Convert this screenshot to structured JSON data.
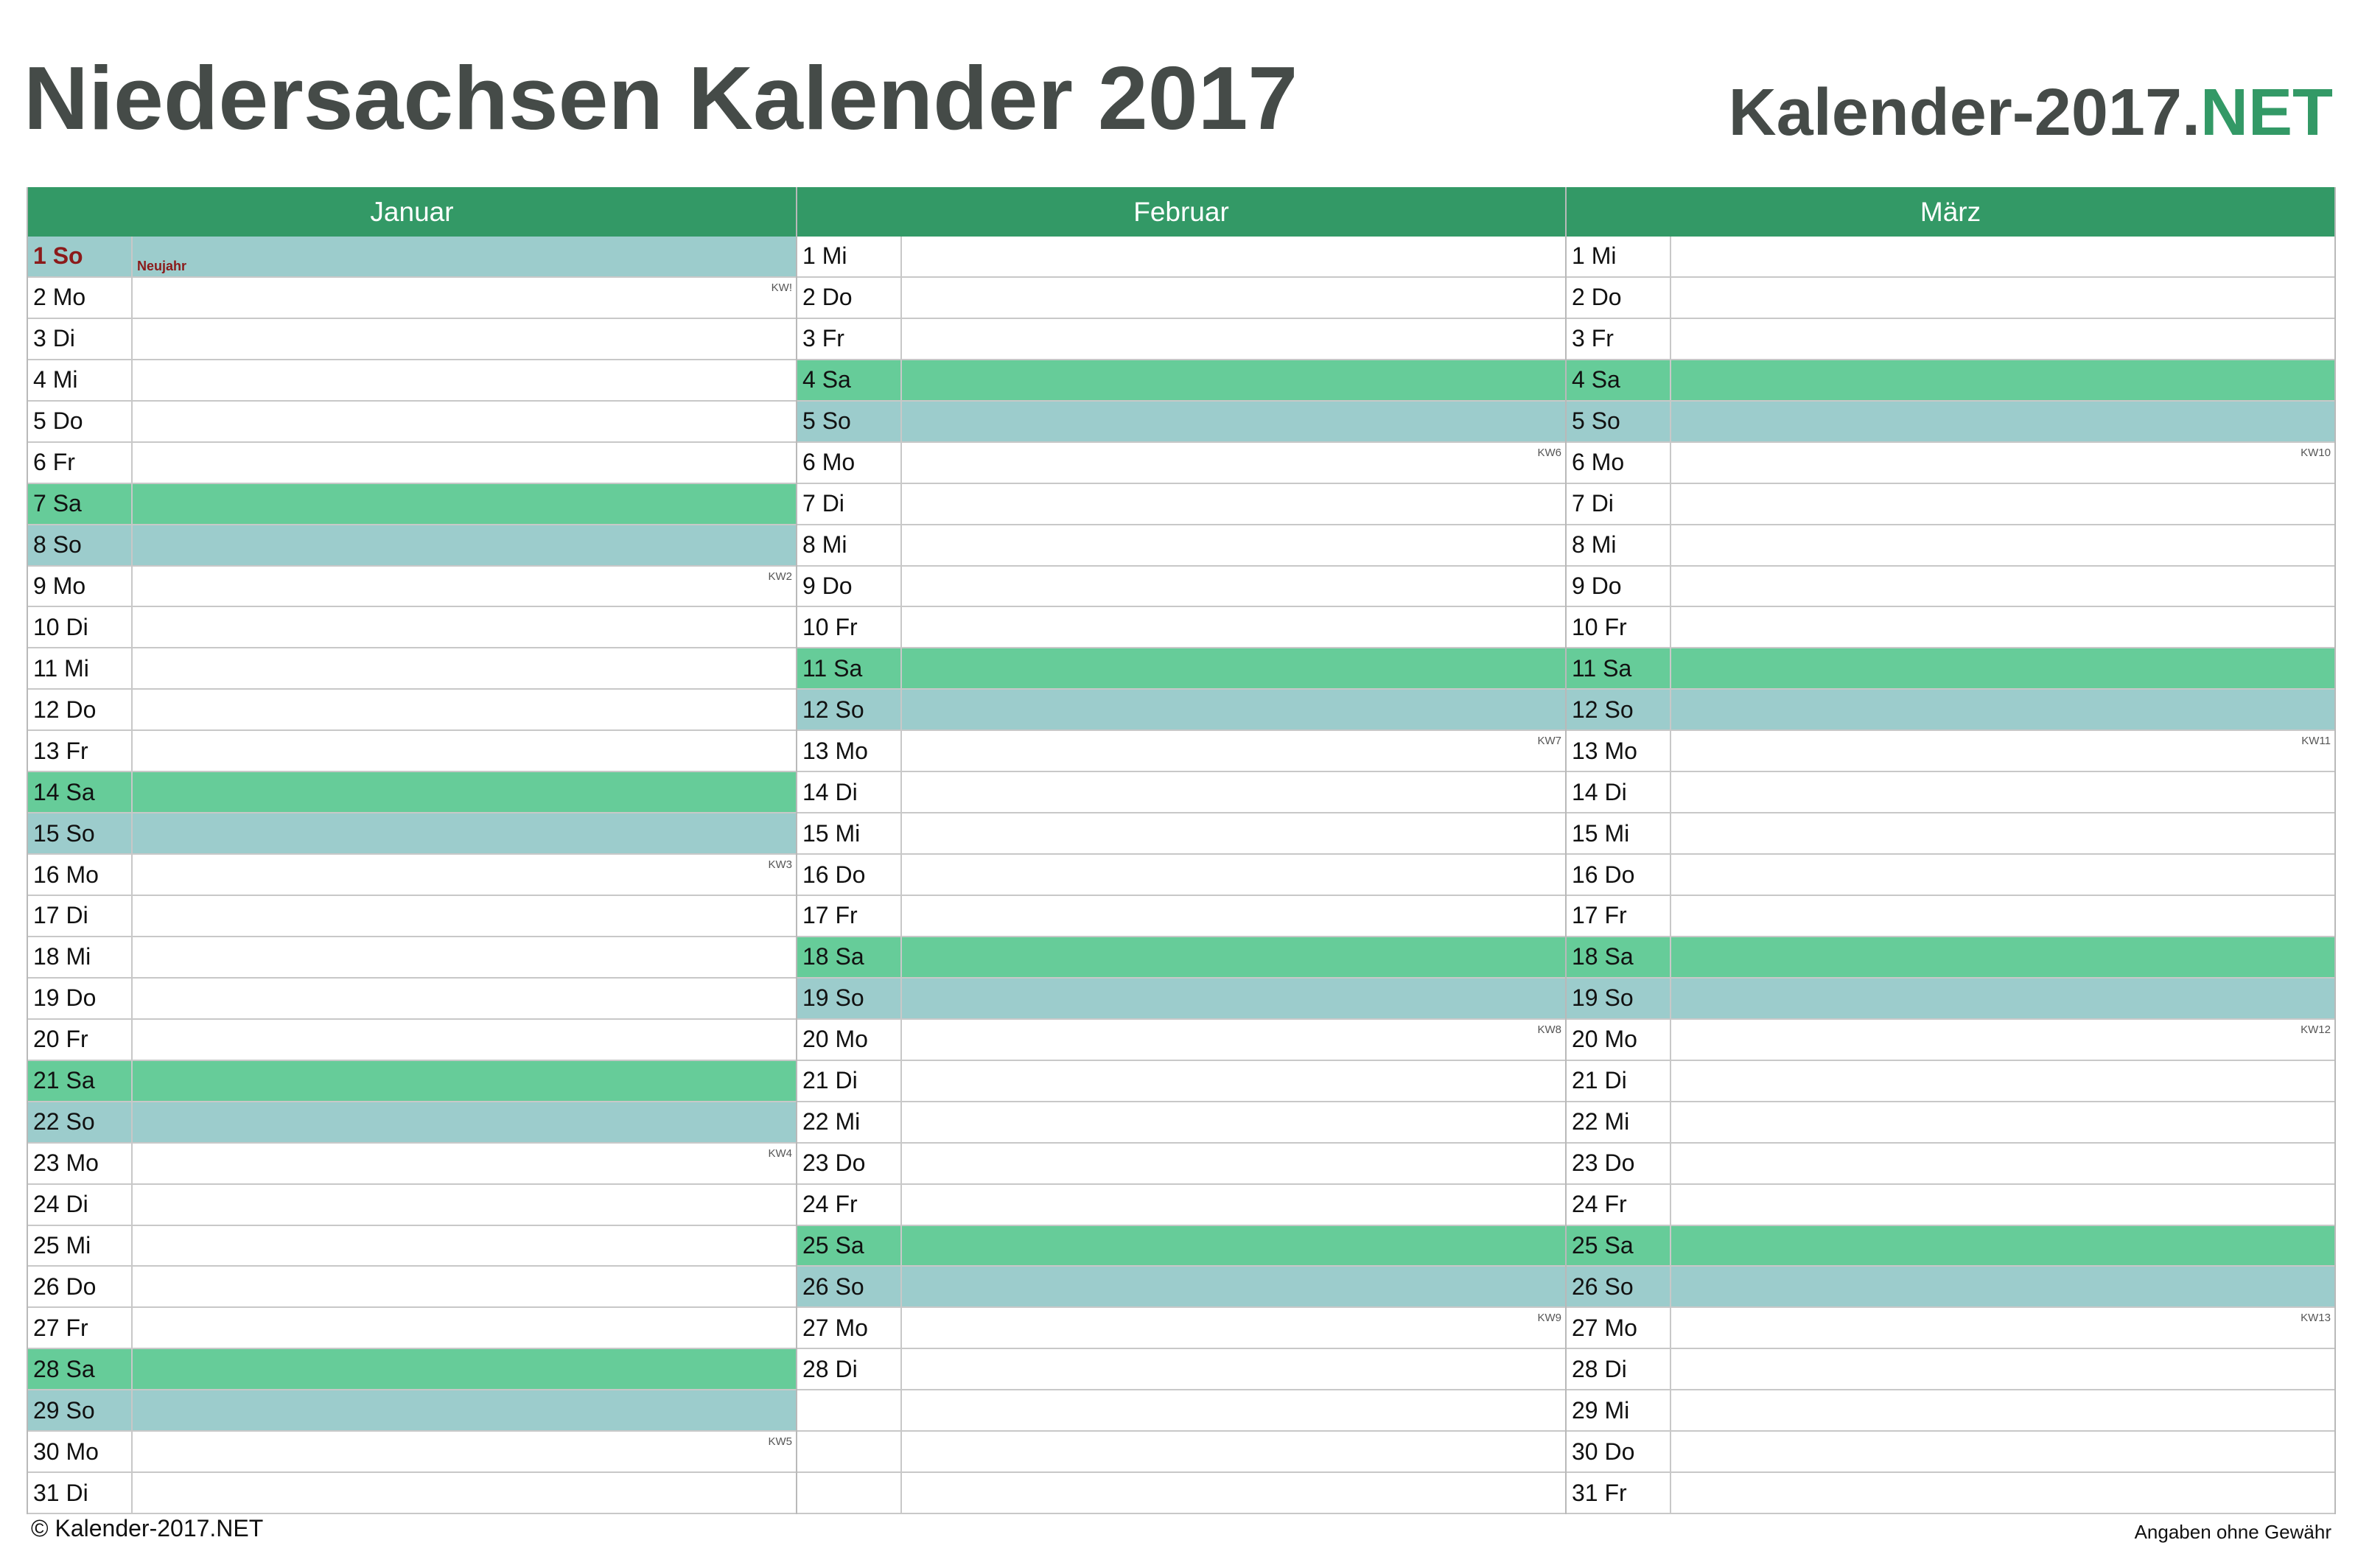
{
  "title": "Niedersachsen Kalender 2017",
  "brand": {
    "name": "Kalender-2017.",
    "tld": "NET"
  },
  "footer": {
    "copyright": "© Kalender-2017.NET",
    "disclaimer": "Angaben ohne Gewähr"
  },
  "colors": {
    "header": "#339966",
    "saturday": "#66cc99",
    "sunday": "#9ccccc",
    "holiday_text": "#8b1a1a"
  },
  "months": [
    {
      "name": "Januar",
      "days": [
        {
          "label": "1 So",
          "type": "holiday",
          "holiday": "Neujahr"
        },
        {
          "label": "2 Mo",
          "kw": "KW!"
        },
        {
          "label": "3 Di"
        },
        {
          "label": "4 Mi"
        },
        {
          "label": "5 Do"
        },
        {
          "label": "6 Fr"
        },
        {
          "label": "7 Sa",
          "type": "sat"
        },
        {
          "label": "8 So",
          "type": "sun"
        },
        {
          "label": "9 Mo",
          "kw": "KW2"
        },
        {
          "label": "10 Di"
        },
        {
          "label": "11 Mi"
        },
        {
          "label": "12 Do"
        },
        {
          "label": "13 Fr"
        },
        {
          "label": "14 Sa",
          "type": "sat"
        },
        {
          "label": "15 So",
          "type": "sun"
        },
        {
          "label": "16 Mo",
          "kw": "KW3"
        },
        {
          "label": "17 Di"
        },
        {
          "label": "18 Mi"
        },
        {
          "label": "19 Do"
        },
        {
          "label": "20 Fr"
        },
        {
          "label": "21 Sa",
          "type": "sat"
        },
        {
          "label": "22 So",
          "type": "sun"
        },
        {
          "label": "23 Mo",
          "kw": "KW4"
        },
        {
          "label": "24 Di"
        },
        {
          "label": "25 Mi"
        },
        {
          "label": "26 Do"
        },
        {
          "label": "27 Fr"
        },
        {
          "label": "28 Sa",
          "type": "sat"
        },
        {
          "label": "29 So",
          "type": "sun"
        },
        {
          "label": "30 Mo",
          "kw": "KW5"
        },
        {
          "label": "31 Di"
        }
      ]
    },
    {
      "name": "Februar",
      "days": [
        {
          "label": "1 Mi"
        },
        {
          "label": "2 Do"
        },
        {
          "label": "3 Fr"
        },
        {
          "label": "4 Sa",
          "type": "sat"
        },
        {
          "label": "5 So",
          "type": "sun"
        },
        {
          "label": "6 Mo",
          "kw": "KW6"
        },
        {
          "label": "7 Di"
        },
        {
          "label": "8 Mi"
        },
        {
          "label": "9 Do"
        },
        {
          "label": "10 Fr"
        },
        {
          "label": "11 Sa",
          "type": "sat"
        },
        {
          "label": "12 So",
          "type": "sun"
        },
        {
          "label": "13 Mo",
          "kw": "KW7"
        },
        {
          "label": "14 Di"
        },
        {
          "label": "15 Mi"
        },
        {
          "label": "16 Do"
        },
        {
          "label": "17 Fr"
        },
        {
          "label": "18 Sa",
          "type": "sat"
        },
        {
          "label": "19 So",
          "type": "sun"
        },
        {
          "label": "20 Mo",
          "kw": "KW8"
        },
        {
          "label": "21 Di"
        },
        {
          "label": "22 Mi"
        },
        {
          "label": "23 Do"
        },
        {
          "label": "24 Fr"
        },
        {
          "label": "25 Sa",
          "type": "sat"
        },
        {
          "label": "26 So",
          "type": "sun"
        },
        {
          "label": "27 Mo",
          "kw": "KW9"
        },
        {
          "label": "28 Di"
        },
        {
          "label": ""
        },
        {
          "label": ""
        },
        {
          "label": ""
        }
      ]
    },
    {
      "name": "März",
      "days": [
        {
          "label": "1 Mi"
        },
        {
          "label": "2 Do"
        },
        {
          "label": "3 Fr"
        },
        {
          "label": "4 Sa",
          "type": "sat"
        },
        {
          "label": "5 So",
          "type": "sun"
        },
        {
          "label": "6 Mo",
          "kw": "KW10"
        },
        {
          "label": "7 Di"
        },
        {
          "label": "8 Mi"
        },
        {
          "label": "9 Do"
        },
        {
          "label": "10 Fr"
        },
        {
          "label": "11 Sa",
          "type": "sat"
        },
        {
          "label": "12 So",
          "type": "sun"
        },
        {
          "label": "13 Mo",
          "kw": "KW11"
        },
        {
          "label": "14 Di"
        },
        {
          "label": "15 Mi"
        },
        {
          "label": "16 Do"
        },
        {
          "label": "17 Fr"
        },
        {
          "label": "18 Sa",
          "type": "sat"
        },
        {
          "label": "19 So",
          "type": "sun"
        },
        {
          "label": "20 Mo",
          "kw": "KW12"
        },
        {
          "label": "21 Di"
        },
        {
          "label": "22 Mi"
        },
        {
          "label": "23 Do"
        },
        {
          "label": "24 Fr"
        },
        {
          "label": "25 Sa",
          "type": "sat"
        },
        {
          "label": "26 So",
          "type": "sun"
        },
        {
          "label": "27 Mo",
          "kw": "KW13"
        },
        {
          "label": "28 Di"
        },
        {
          "label": "29 Mi"
        },
        {
          "label": "30 Do"
        },
        {
          "label": "31 Fr"
        }
      ]
    }
  ]
}
